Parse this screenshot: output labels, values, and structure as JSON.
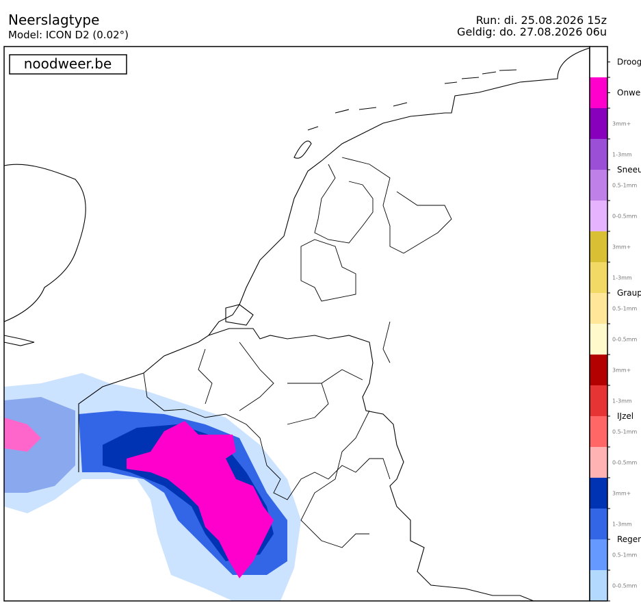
{
  "header": {
    "title": "Neerslagtype",
    "model": "Model: ICON D2 (0.02°)",
    "run": "Run: di. 25.08.2026 15z",
    "valid": "Geldig: do. 27.08.2026 06u"
  },
  "watermark": "noodweer.be",
  "legend": {
    "groups": [
      {
        "name": "Droog",
        "color": "#ffffff"
      },
      {
        "name": "Onwe",
        "color": "#ff00cc"
      },
      {
        "name": "Sneeu",
        "levels": [
          {
            "text": "3mm+",
            "color": "#8800bb"
          },
          {
            "text": "1-3mm",
            "color": "#9b4fd6"
          },
          {
            "text": "0.5-1mm",
            "color": "#bf80e8"
          },
          {
            "text": "0-0.5mm",
            "color": "#e6b3ff"
          }
        ]
      },
      {
        "name": "Graup",
        "levels": [
          {
            "text": "3mm+",
            "color": "#d9bf33"
          },
          {
            "text": "1-3mm",
            "color": "#f2d966"
          },
          {
            "text": "0.5-1mm",
            "color": "#ffe699"
          },
          {
            "text": "0-0.5mm",
            "color": "#fff9cc"
          }
        ]
      },
      {
        "name": "IJzel",
        "levels": [
          {
            "text": "3mm+",
            "color": "#b30000"
          },
          {
            "text": "1-3mm",
            "color": "#e63333"
          },
          {
            "text": "0.5-1mm",
            "color": "#ff6666"
          },
          {
            "text": "0-0.5mm",
            "color": "#ffb3b3"
          }
        ]
      },
      {
        "name": "Regen",
        "levels": [
          {
            "text": "3mm+",
            "color": "#0033b3"
          },
          {
            "text": "1-3mm",
            "color": "#3366e6"
          },
          {
            "text": "0.5-1mm",
            "color": "#6699ff"
          },
          {
            "text": "0-0.5mm",
            "color": "#b3d9ff"
          }
        ]
      }
    ]
  }
}
